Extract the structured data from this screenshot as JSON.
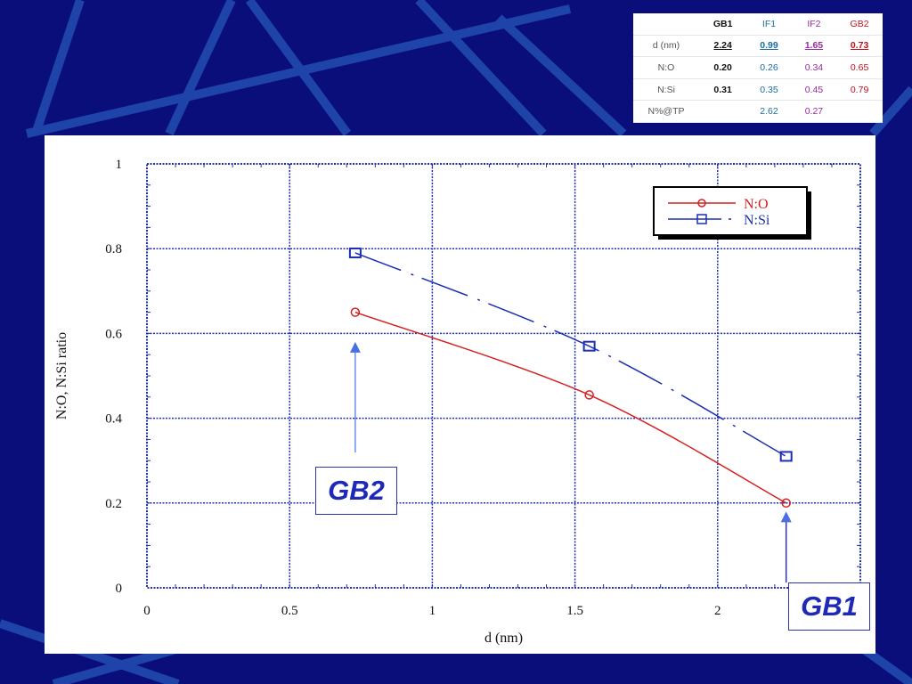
{
  "table": {
    "headers": [
      "",
      "GB1",
      "IF1",
      "IF2",
      "GB2"
    ],
    "rows": [
      {
        "label": "d (nm)",
        "values": [
          "2.24",
          "0.99",
          "1.65",
          "0.73"
        ]
      },
      {
        "label": "N:O",
        "values": [
          "0.20",
          "0.26",
          "0.34",
          "0.65"
        ]
      },
      {
        "label": "N:Si",
        "values": [
          "0.31",
          "0.35",
          "0.45",
          "0.79"
        ]
      },
      {
        "label": "N%@TP",
        "values": [
          "",
          "2.62",
          "0.27",
          ""
        ]
      }
    ]
  },
  "chart_data": {
    "type": "line",
    "title": "",
    "xlabel": "d (nm)",
    "ylabel": "N:O, N:Si ratio",
    "xlim": [
      0,
      2.5
    ],
    "ylim": [
      0,
      1
    ],
    "xticks": [
      "0",
      "0.5",
      "1",
      "1.5",
      "2"
    ],
    "yticks": [
      "0",
      "0.2",
      "0.4",
      "0.6",
      "0.8",
      "1"
    ],
    "grid": true,
    "legend_position": "top-right",
    "series": [
      {
        "name": "N:O",
        "color": "#d42020",
        "marker": "circle",
        "line": "solid",
        "x": [
          0.73,
          1.55,
          2.24
        ],
        "y": [
          0.65,
          0.455,
          0.2
        ]
      },
      {
        "name": "N:Si",
        "color": "#1b2fb0",
        "marker": "square",
        "line": "dashed",
        "x": [
          0.73,
          1.55,
          2.24
        ],
        "y": [
          0.79,
          0.57,
          0.31
        ]
      }
    ],
    "annotations": [
      {
        "text": "GB2",
        "points_to": {
          "x": 0.73,
          "y": 0.58
        }
      },
      {
        "text": "GB1",
        "points_to": {
          "x": 2.24,
          "y": 0.18
        }
      }
    ]
  }
}
